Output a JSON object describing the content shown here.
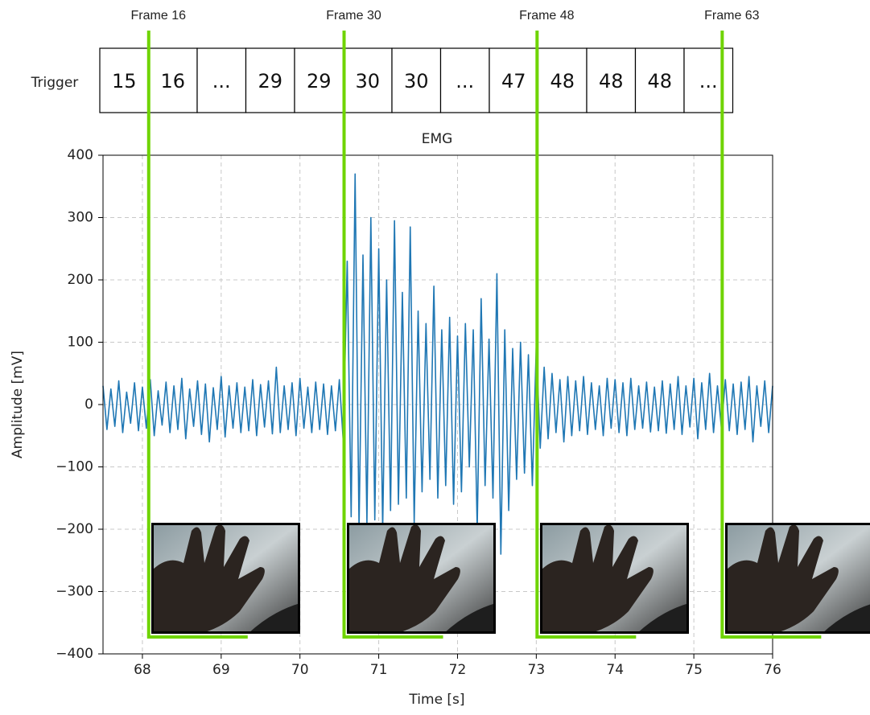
{
  "chart_data": {
    "type": "line",
    "title": "EMG",
    "x_label": "Time [s]",
    "y_label": "Amplitude [mV]",
    "color": "#1f77b4",
    "grid": true,
    "x": [
      67.5,
      67.55,
      67.6,
      67.65,
      67.7,
      67.75,
      67.8,
      67.85,
      67.9,
      67.95,
      68,
      68.05,
      68.1,
      68.15,
      68.2,
      68.25,
      68.3,
      68.35,
      68.4,
      68.45,
      68.5,
      68.55,
      68.6,
      68.65,
      68.7,
      68.75,
      68.8,
      68.85,
      68.9,
      68.95,
      69,
      69.05,
      69.1,
      69.15,
      69.2,
      69.25,
      69.3,
      69.35,
      69.4,
      69.45,
      69.5,
      69.55,
      69.6,
      69.65,
      69.7,
      69.75,
      69.8,
      69.85,
      69.9,
      69.95,
      70,
      70.05,
      70.1,
      70.15,
      70.2,
      70.25,
      70.3,
      70.35,
      70.4,
      70.45,
      70.5,
      70.55,
      70.6,
      70.65,
      70.7,
      70.75,
      70.8,
      70.85,
      70.9,
      70.95,
      71,
      71.05,
      71.1,
      71.15,
      71.2,
      71.25,
      71.3,
      71.35,
      71.4,
      71.45,
      71.5,
      71.55,
      71.6,
      71.65,
      71.7,
      71.75,
      71.8,
      71.85,
      71.9,
      71.95,
      72,
      72.05,
      72.1,
      72.15,
      72.2,
      72.25,
      72.3,
      72.35,
      72.4,
      72.45,
      72.5,
      72.55,
      72.6,
      72.65,
      72.7,
      72.75,
      72.8,
      72.85,
      72.9,
      72.95,
      73,
      73.05,
      73.1,
      73.15,
      73.2,
      73.25,
      73.3,
      73.35,
      73.4,
      73.45,
      73.5,
      73.55,
      73.6,
      73.65,
      73.7,
      73.75,
      73.8,
      73.85,
      73.9,
      73.95,
      74,
      74.05,
      74.1,
      74.15,
      74.2,
      74.25,
      74.3,
      74.35,
      74.4,
      74.45,
      74.5,
      74.55,
      74.6,
      74.65,
      74.7,
      74.75,
      74.8,
      74.85,
      74.9,
      74.95,
      75,
      75.05,
      75.1,
      75.15,
      75.2,
      75.25,
      75.3,
      75.35,
      75.4,
      75.45,
      75.5,
      75.55,
      75.6,
      75.65,
      75.7,
      75.75,
      75.8,
      75.85,
      75.9,
      75.95,
      76
    ],
    "values": [
      30,
      -40,
      25,
      -35,
      38,
      -45,
      20,
      -30,
      35,
      -42,
      28,
      -38,
      40,
      -50,
      22,
      -33,
      36,
      -45,
      30,
      -40,
      42,
      -55,
      25,
      -35,
      38,
      -48,
      33,
      -60,
      27,
      -40,
      45,
      -52,
      30,
      -38,
      35,
      -45,
      28,
      -42,
      40,
      -50,
      32,
      -36,
      38,
      -47,
      60,
      -45,
      30,
      -40,
      35,
      -50,
      42,
      -38,
      28,
      -45,
      36,
      -40,
      33,
      -48,
      30,
      -42,
      40,
      -60,
      230,
      -180,
      370,
      -200,
      240,
      -190,
      300,
      -185,
      250,
      -200,
      200,
      -170,
      295,
      -160,
      180,
      -150,
      285,
      -190,
      150,
      -140,
      130,
      -120,
      190,
      -150,
      120,
      -130,
      140,
      -160,
      110,
      -140,
      130,
      -100,
      120,
      -200,
      170,
      -130,
      105,
      -150,
      210,
      -240,
      120,
      -170,
      90,
      -120,
      100,
      -110,
      80,
      -130,
      95,
      -70,
      60,
      -55,
      50,
      -45,
      40,
      -60,
      45,
      -50,
      38,
      -42,
      45,
      -48,
      35,
      -40,
      30,
      -50,
      42,
      -38,
      40,
      -45,
      35,
      -50,
      42,
      -40,
      30,
      -38,
      36,
      -44,
      28,
      -42,
      38,
      -46,
      33,
      -40,
      45,
      -48,
      30,
      -36,
      42,
      -55,
      35,
      -40,
      50,
      -45,
      30,
      -38,
      40,
      -42,
      33,
      -48,
      36,
      -40,
      45,
      -60,
      30,
      -35,
      38,
      -45,
      30
    ],
    "xlim": [
      67.5,
      76
    ],
    "ylim": [
      -400,
      400
    ],
    "xticks": [
      68,
      69,
      70,
      71,
      72,
      73,
      74,
      75,
      76
    ],
    "yticks": [
      {
        "value": -400,
        "label": "−400"
      },
      {
        "value": -300,
        "label": "−300"
      },
      {
        "value": -200,
        "label": "−200"
      },
      {
        "value": -100,
        "label": "−100"
      },
      0,
      100,
      200,
      300,
      400
    ],
    "frame_markers": [
      {
        "label": "Frame 16",
        "x": 68.08
      },
      {
        "label": "Frame 30",
        "x": 70.56
      },
      {
        "label": "Frame 48",
        "x": 73.01
      },
      {
        "label": "Frame 63",
        "x": 75.36
      }
    ],
    "marker_color": "#6fd400",
    "trigger_row": {
      "label": "Trigger",
      "cells": [
        "15",
        "16",
        "...",
        "29",
        "29",
        "30",
        "30",
        "...",
        "47",
        "48",
        "48",
        "48",
        "..."
      ]
    }
  }
}
